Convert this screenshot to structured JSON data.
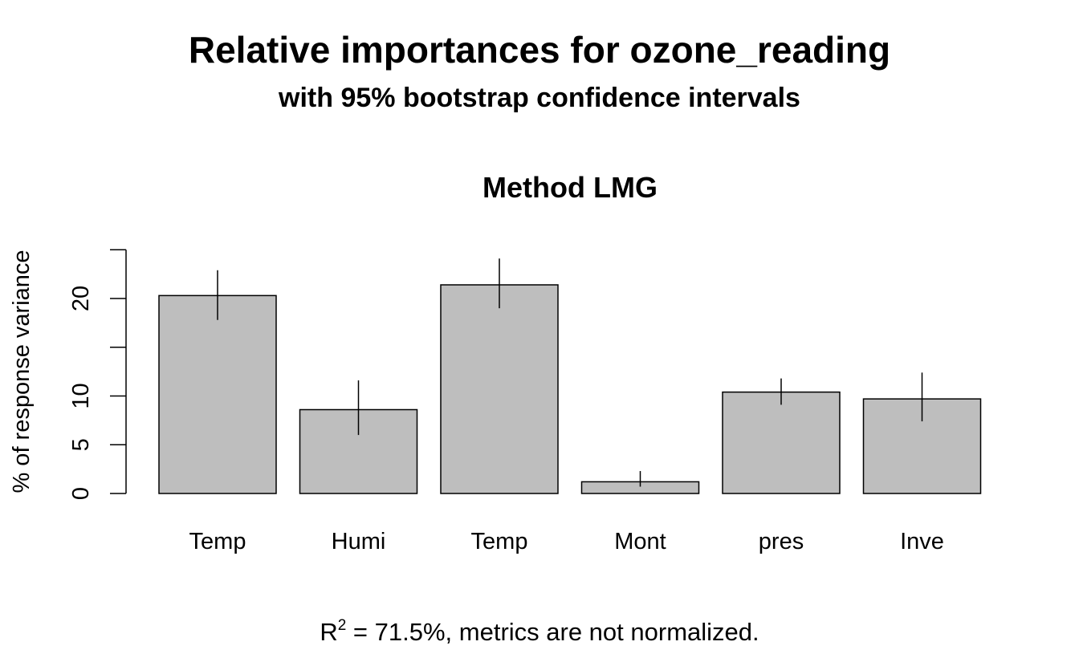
{
  "chart_data": {
    "type": "bar",
    "title": "Relative importances for ozone_reading",
    "subtitle": "with 95% bootstrap confidence intervals",
    "panel_title": "Method LMG",
    "ylabel": "% of response variance",
    "categories": [
      "Temp",
      "Humi",
      "Temp",
      "Mont",
      "pres",
      "Inve"
    ],
    "values": [
      20.3,
      8.6,
      21.4,
      1.2,
      10.4,
      9.7
    ],
    "ci_lower": [
      17.8,
      6.0,
      19.0,
      0.7,
      9.1,
      7.4
    ],
    "ci_upper": [
      22.9,
      11.6,
      24.1,
      2.3,
      11.8,
      12.4
    ],
    "ylim": [
      0,
      25
    ],
    "yticks": [
      0,
      5,
      10,
      15,
      20,
      25
    ],
    "ytick_labels": [
      "0",
      "5",
      "10",
      "",
      "20",
      ""
    ],
    "bar_color": "#bebebe",
    "grid": false,
    "footnote": {
      "prefix": "R",
      "superscript": "2",
      "suffix": " = 71.5%, metrics are not normalized."
    }
  }
}
